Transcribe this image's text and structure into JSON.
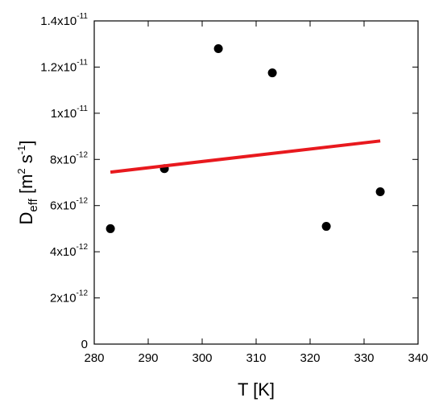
{
  "chart_data": {
    "type": "scatter",
    "xlabel": "T [K]",
    "xlabel_text": "T",
    "xlabel_unit": "[K]",
    "ylabel": "D_eff [m^2 s^-1]",
    "ylabel_main": "D",
    "ylabel_sub": "eff",
    "ylabel_unit_open": "[m",
    "ylabel_unit_exp1": "2",
    "ylabel_unit_mid": "s",
    "ylabel_unit_exp2": "-1",
    "ylabel_unit_close": "]",
    "xlim": [
      280,
      340
    ],
    "ylim": [
      0,
      1.4e-11
    ],
    "xticks": [
      280,
      290,
      300,
      310,
      320,
      330,
      340
    ],
    "yticks": [
      {
        "value": 0,
        "mantissa": "0",
        "exponent": ""
      },
      {
        "value": 2e-12,
        "mantissa": "2x10",
        "exponent": "-12"
      },
      {
        "value": 4e-12,
        "mantissa": "4x10",
        "exponent": "-12"
      },
      {
        "value": 6e-12,
        "mantissa": "6x10",
        "exponent": "-12"
      },
      {
        "value": 8e-12,
        "mantissa": "8x10",
        "exponent": "-12"
      },
      {
        "value": 1e-11,
        "mantissa": "1x10",
        "exponent": "-11"
      },
      {
        "value": 1.2e-11,
        "mantissa": "1.2x10",
        "exponent": "-11"
      },
      {
        "value": 1.4e-11,
        "mantissa": "1.4x10",
        "exponent": "-11"
      }
    ],
    "grid": false,
    "series": [
      {
        "kind": "points",
        "color": "#000000",
        "x": [
          283,
          293,
          303,
          313,
          323,
          333
        ],
        "y": [
          5e-12,
          7.6e-12,
          1.28e-11,
          1.175e-11,
          5.1e-12,
          6.6e-12
        ]
      },
      {
        "kind": "fit-line",
        "color": "#e8191e",
        "x": [
          283,
          333
        ],
        "y": [
          7.45e-12,
          8.8e-12
        ]
      }
    ]
  }
}
